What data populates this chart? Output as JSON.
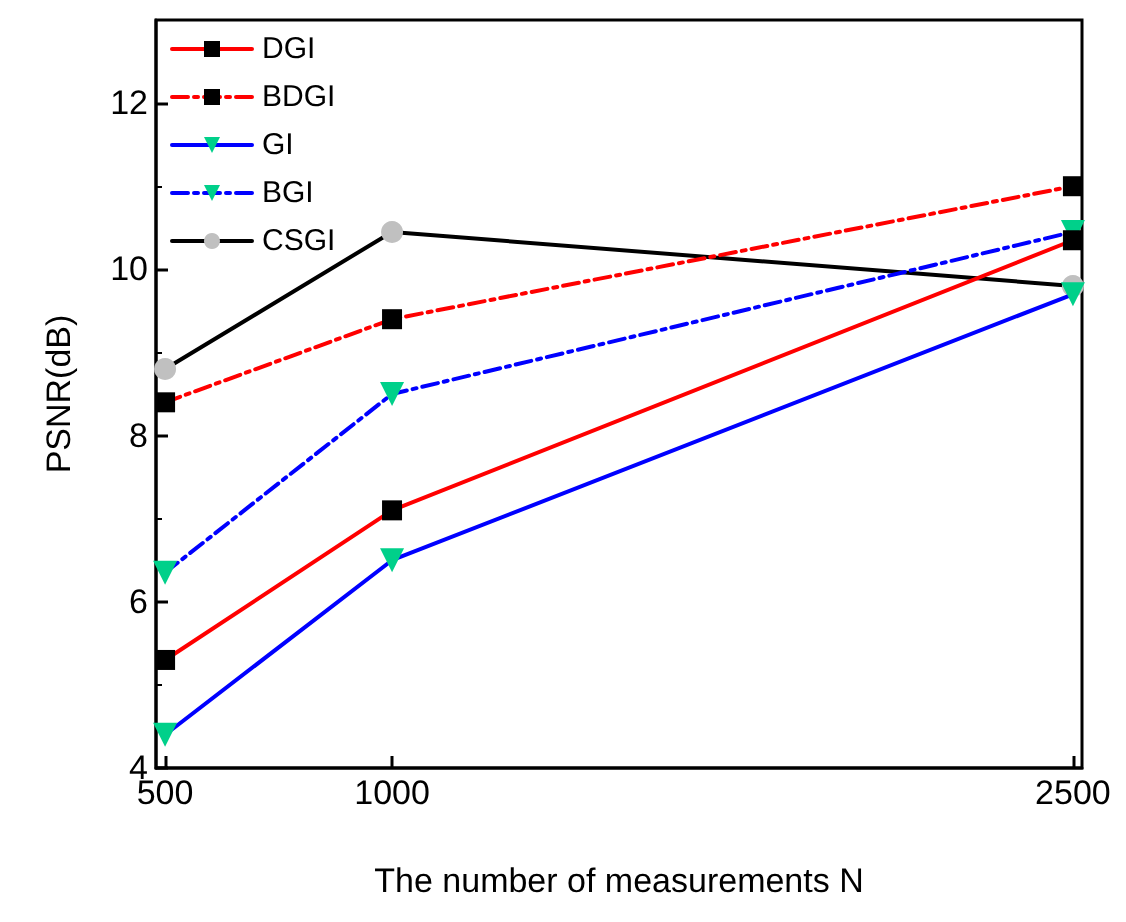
{
  "chart_data": {
    "type": "line",
    "xlabel": "The number of measurements N",
    "ylabel": "PSNR(dB)",
    "x": [
      500,
      1000,
      2500
    ],
    "xlim": [
      480,
      2520
    ],
    "xticks": [
      500,
      1000,
      2500
    ],
    "ylim": [
      4,
      13
    ],
    "yticks": [
      4,
      6,
      8,
      10,
      12
    ],
    "grid": false,
    "legend": "top left",
    "series": [
      {
        "name": "DGI",
        "color": "#ff0000",
        "marker": "square",
        "line_style": "solid",
        "values": [
          5.3,
          7.1,
          10.35
        ]
      },
      {
        "name": "BDGI",
        "color": "#ff0000",
        "marker": "square",
        "line_style": "dashed",
        "values": [
          8.4,
          9.4,
          11.0
        ]
      },
      {
        "name": "GI",
        "color": "#0000ff",
        "marker": "triangle",
        "line_style": "solid",
        "values": [
          4.4,
          6.5,
          9.7
        ]
      },
      {
        "name": "BGI",
        "color": "#0000ff",
        "marker": "triangle",
        "line_style": "dashed",
        "values": [
          6.35,
          8.5,
          10.45
        ]
      },
      {
        "name": "CSGI",
        "color": "#000000",
        "marker": "circle",
        "line_style": "solid",
        "values": [
          8.8,
          10.45,
          9.8
        ]
      }
    ]
  }
}
